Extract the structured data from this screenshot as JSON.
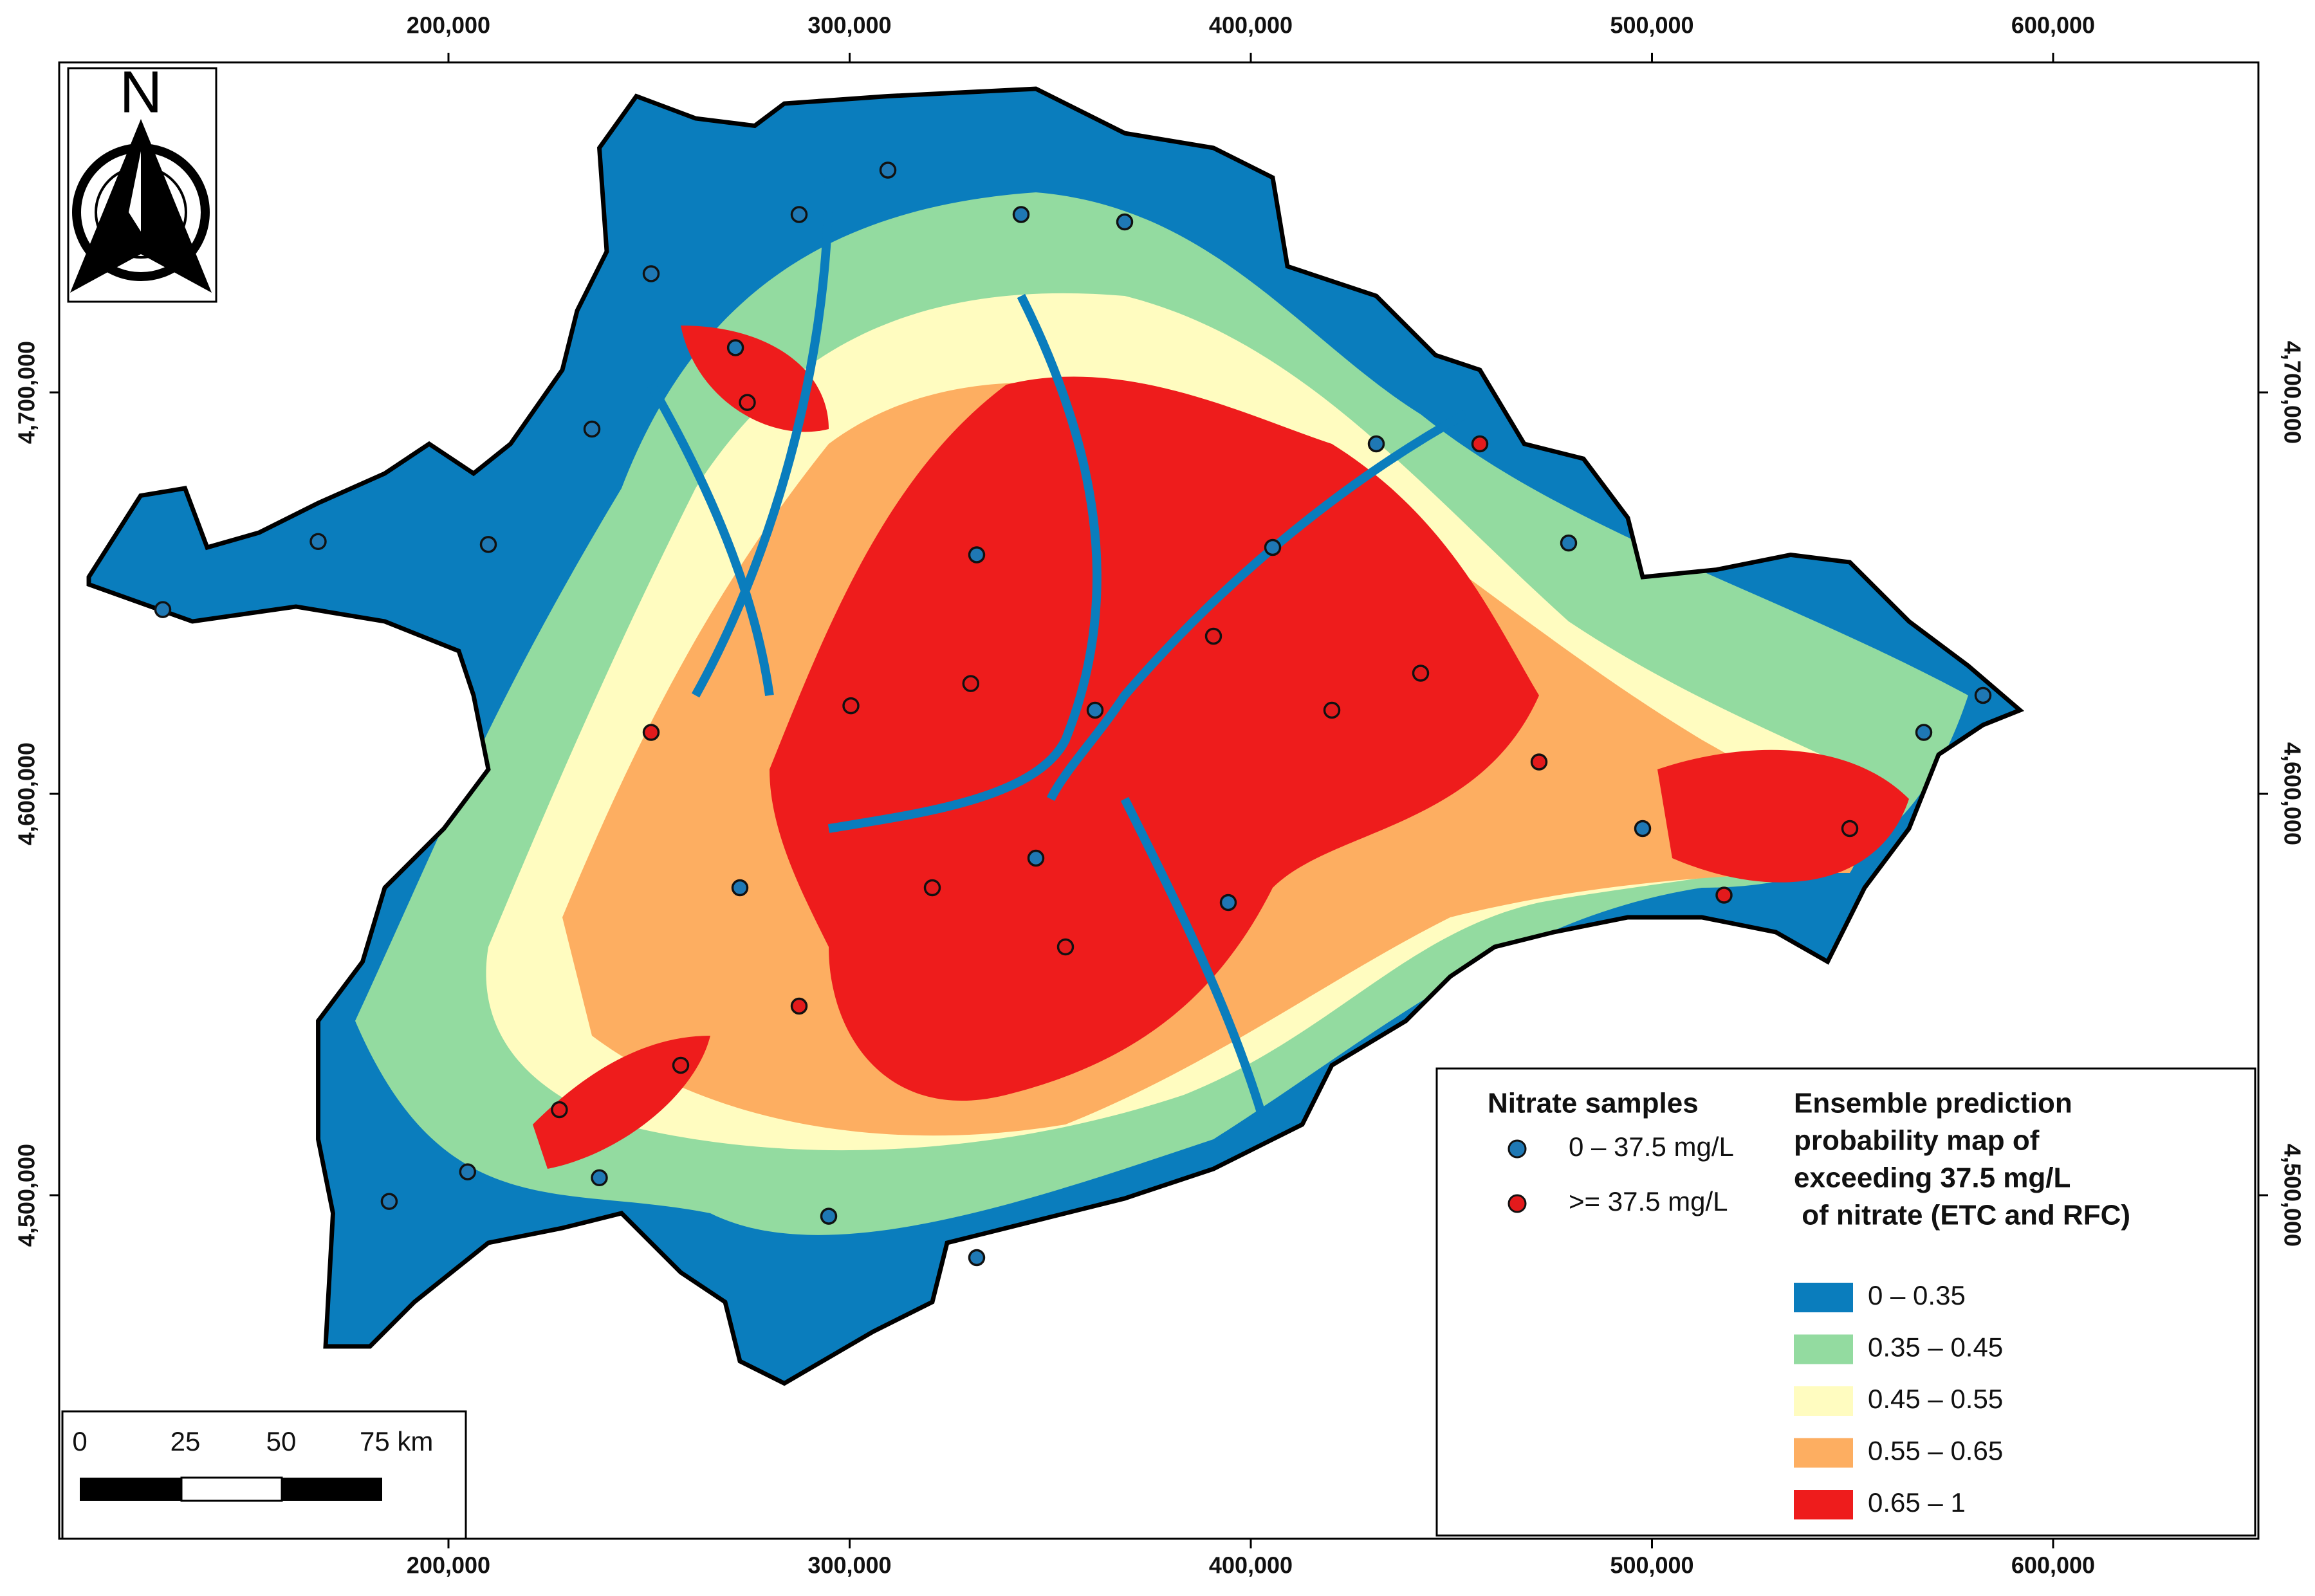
{
  "map": {
    "north_label": "N",
    "x_ticks": [
      "200,000",
      "300,000",
      "400,000",
      "500,000",
      "600,000"
    ],
    "y_ticks": [
      "4,700,000",
      "4,600,000",
      "4,500,000"
    ],
    "legend": {
      "samples_title": "Nitrate samples",
      "samples": [
        {
          "label": "0 – 37.5 mg/L",
          "color": "#1f78b4"
        },
        {
          "label": ">= 37.5 mg/L",
          "color": "#e31a1c"
        }
      ],
      "probability_title": [
        "Ensemble prediction",
        "probability map of",
        "exceeding 37.5 mg/L",
        " of nitrate (ETC and RFC)"
      ],
      "classes": [
        {
          "label": "0 – 0.35",
          "color": "#0a7dbd"
        },
        {
          "label": "0.35 – 0.45",
          "color": "#93dba0"
        },
        {
          "label": "0.45 – 0.55",
          "color": "#fffcc0"
        },
        {
          "label": "0.55 – 0.65",
          "color": "#fdae61"
        },
        {
          "label": "0.65 – 1",
          "color": "#ee1c1c"
        }
      ]
    },
    "scale_bar": {
      "labels": [
        "0",
        "25",
        "50",
        "75 km"
      ]
    }
  }
}
